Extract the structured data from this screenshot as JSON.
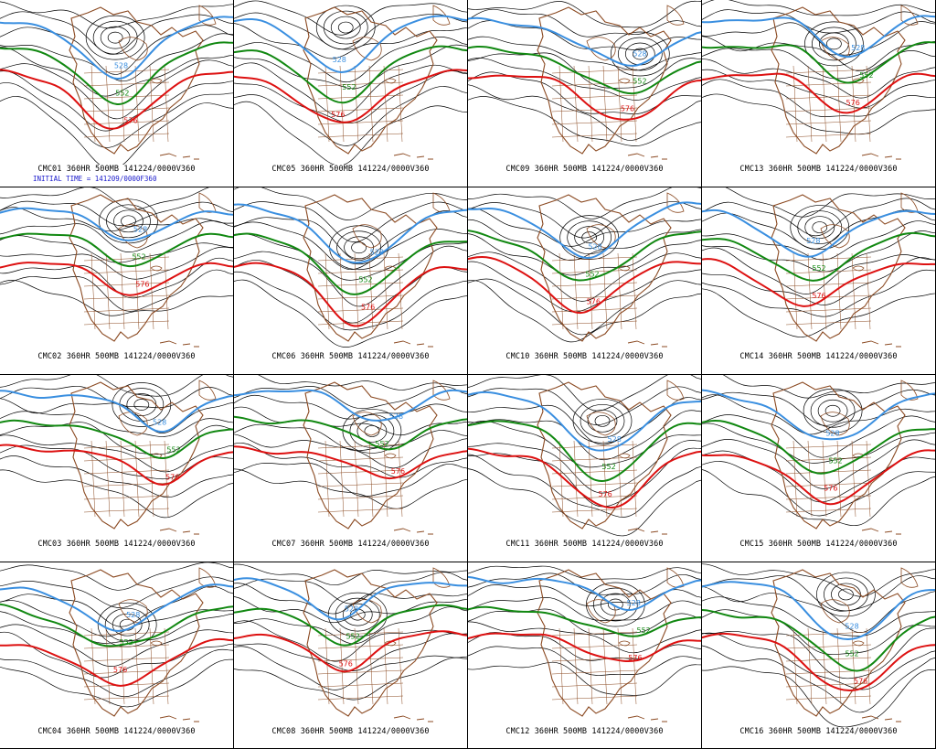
{
  "colors": {
    "contour": "#000000",
    "c528": "#3a8fe0",
    "c552": "#118811",
    "c576": "#dd1111",
    "land": "#8b4a22",
    "initial_time": "#1a1acc"
  },
  "contour_labels": {
    "c528": "528",
    "c552": "552",
    "c576": "576"
  },
  "initial_time": "INITIAL TIME = 141209/0000F360",
  "panels": [
    {
      "member": "CMC01",
      "caption": "CMC01 360HR 500MB 141224/0000V360"
    },
    {
      "member": "CMC05",
      "caption": "CMC05 360HR 500MB 141224/0000V360"
    },
    {
      "member": "CMC09",
      "caption": "CMC09 360HR 500MB 141224/0000V360"
    },
    {
      "member": "CMC13",
      "caption": "CMC13 360HR 500MB 141224/0000V360"
    },
    {
      "member": "CMC02",
      "caption": "CMC02 360HR 500MB 141224/0000V360"
    },
    {
      "member": "CMC06",
      "caption": "CMC06 360HR 500MB 141224/0000V360"
    },
    {
      "member": "CMC10",
      "caption": "CMC10 360HR 500MB 141224/0000V360"
    },
    {
      "member": "CMC14",
      "caption": "CMC14 360HR 500MB 141224/0000V360"
    },
    {
      "member": "CMC03",
      "caption": "CMC03 360HR 500MB 141224/0000V360"
    },
    {
      "member": "CMC07",
      "caption": "CMC07 360HR 500MB 141224/0000V360"
    },
    {
      "member": "CMC11",
      "caption": "CMC11 360HR 500MB 141224/0000V360"
    },
    {
      "member": "CMC15",
      "caption": "CMC15 360HR 500MB 141224/0000V360"
    },
    {
      "member": "CMC04",
      "caption": "CMC04 360HR 500MB 141224/0000V360"
    },
    {
      "member": "CMC08",
      "caption": "CMC08 360HR 500MB 141224/0000V360"
    },
    {
      "member": "CMC12",
      "caption": "CMC12 360HR 500MB 141224/0000V360"
    },
    {
      "member": "CMC16",
      "caption": "CMC16 360HR 500MB 141224/0000V360"
    }
  ]
}
